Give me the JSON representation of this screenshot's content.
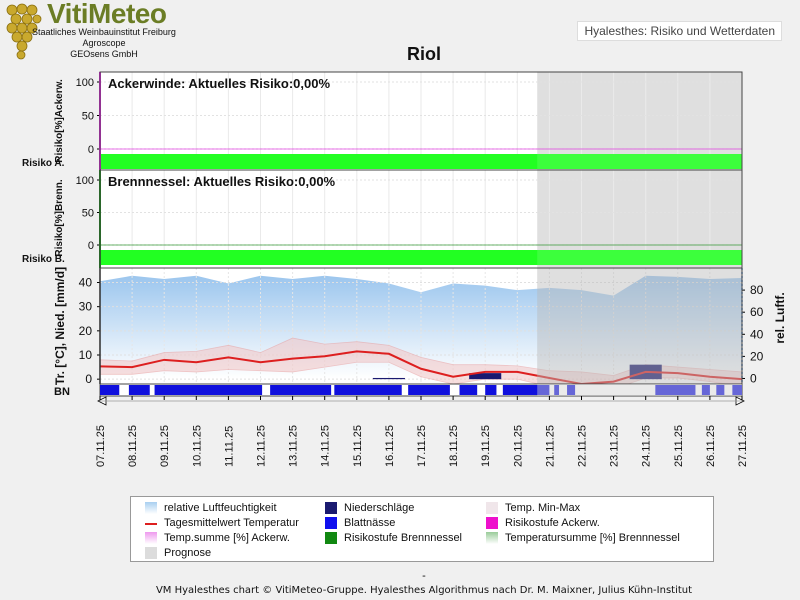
{
  "header": {
    "brand": "VitiMeteo",
    "org_lines": [
      "Staatliches Weinbauinstitut Freiburg",
      "Agroscope",
      "GEOsens GmbH"
    ],
    "badge": "Hyalesthes: Risiko und Wetterdaten"
  },
  "colors": {
    "risk_bar": "#22ff22",
    "prognose": "#dcdcdc",
    "humidity": "#a8cff0",
    "temp_line": "#dd1f1f",
    "minmax": "#f2c9c9",
    "leaf_wetness": "#1010dd",
    "precip": "#1a1a70",
    "ackerw_axis": "#e020e0",
    "brennn_axis": "#118811"
  },
  "footer": {
    "dash": "-",
    "credit": "VM Hyalesthes chart © VitiMeteo-Gruppe. Hyalesthes Algorithmus nach Dr. M. Maixner, Julius Kühn-Institut"
  },
  "legend": [
    {
      "label": "relative Luftfeuchtigkeit",
      "color": "#a8cff0",
      "kind": "gradient"
    },
    {
      "label": "Niederschläge",
      "color": "#1a1a70",
      "kind": "box"
    },
    {
      "label": "Temp. Min-Max",
      "color": "#f0e6ea",
      "kind": "box"
    },
    {
      "label": "Tagesmittelwert Temperatur",
      "color": "#dd1f1f",
      "kind": "line"
    },
    {
      "label": "Blattnässe",
      "color": "#1010ee",
      "kind": "box"
    },
    {
      "label": "Risikostufe Ackerw.",
      "color": "#ee10cc",
      "kind": "box"
    },
    {
      "label": "Temp.summe [%] Ackerw.",
      "color": "#ee99ee",
      "kind": "gradient"
    },
    {
      "label": "Risikostufe Brennnessel",
      "color": "#118811",
      "kind": "box"
    },
    {
      "label": "Temperatursumme [%] Brennnessel",
      "color": "#99cc99",
      "kind": "gradient"
    },
    {
      "label": "Prognose",
      "color": "#dcdcdc",
      "kind": "box"
    }
  ],
  "chart_data": {
    "type": "line",
    "title": "Riol",
    "x": [
      "07.11.25",
      "08.11.25",
      "09.11.25",
      "10.11.25",
      "11.11.25",
      "12.11.25",
      "13.11.25",
      "14.11.25",
      "15.11.25",
      "16.11.25",
      "17.11.25",
      "18.11.25",
      "19.11.25",
      "20.11.25",
      "21.11.25",
      "22.11.25",
      "23.11.25",
      "24.11.25",
      "25.11.25",
      "26.11.25",
      "27.11.25"
    ],
    "prognose_start": "21.11.25",
    "panels": [
      {
        "name": "Ackerwinde",
        "annotation": "Ackerwinde: Aktuelles Risiko:0,00%",
        "ylabel": "Risiko[%]Ackerw.",
        "risk_label": "Risiko A.",
        "yticks": [
          0,
          50,
          100
        ],
        "ylim": [
          -5,
          105
        ],
        "temp_sum_percent": [
          0,
          0,
          0,
          0,
          0,
          0,
          0,
          0,
          0,
          0,
          0,
          0,
          0,
          0,
          0,
          0,
          0,
          0,
          0,
          0,
          0
        ],
        "risk_level": "0"
      },
      {
        "name": "Brennnessel",
        "annotation": "Brennnessel: Aktuelles Risiko:0,00%",
        "ylabel": "Risiko[%]Brenn.",
        "risk_label": "Risiko B.",
        "yticks": [
          0,
          50,
          100
        ],
        "ylim": [
          -5,
          105
        ],
        "temp_sum_percent": [
          0,
          0,
          0,
          0,
          0,
          0,
          0,
          0,
          0,
          0,
          0,
          0,
          0,
          0,
          0,
          0,
          0,
          0,
          0,
          0,
          0
        ],
        "risk_level": "0"
      },
      {
        "name": "Wetter",
        "ylabel_left": "Tr. [°C], Nied. [mm/d]",
        "ylabel_right": "rel. Luftf.",
        "yticks_left": [
          0,
          10,
          20,
          30,
          40
        ],
        "ylim_left": [
          -2,
          46
        ],
        "yticks_right": [
          0,
          20,
          40,
          60,
          80
        ],
        "ylim_right": [
          -5,
          100
        ],
        "bn_label": "BN",
        "humidity_percent": [
          88,
          93,
          90,
          93,
          86,
          93,
          90,
          93,
          90,
          86,
          78,
          86,
          84,
          80,
          82,
          80,
          75,
          93,
          92,
          90,
          91
        ],
        "temp_mean": [
          5.3,
          5.0,
          8.0,
          7.0,
          9.0,
          7.0,
          8.5,
          9.5,
          11.5,
          10.5,
          4.3,
          1.0,
          3.0,
          3.0,
          0.5,
          -2.0,
          -1.0,
          3.0,
          2.5,
          1.0,
          0.0
        ],
        "temp_max": [
          8.0,
          7.5,
          11.0,
          11.5,
          14.0,
          11.0,
          17.0,
          14.5,
          15.5,
          14.0,
          9.0,
          6.0,
          6.0,
          5.5,
          3.5,
          3.0,
          1.5,
          6.0,
          5.0,
          4.0,
          3.0
        ],
        "temp_min": [
          2.0,
          2.0,
          3.5,
          3.0,
          4.0,
          3.5,
          3.0,
          5.0,
          7.0,
          7.0,
          1.0,
          -2.0,
          0.0,
          0.0,
          -3.0,
          -5.0,
          -4.0,
          0.5,
          0.5,
          -1.0,
          -3.0
        ],
        "precip_mm": [
          0,
          0,
          0,
          0,
          0,
          0,
          0,
          0,
          0,
          0.5,
          0,
          0,
          2.5,
          0,
          0,
          0,
          0,
          6.0,
          0,
          0,
          0
        ],
        "leaf_wetness_segments": [
          [
            0.0,
            0.6
          ],
          [
            0.9,
            1.55
          ],
          [
            1.7,
            5.05
          ],
          [
            5.3,
            7.2
          ],
          [
            7.3,
            9.4
          ],
          [
            9.6,
            10.9
          ],
          [
            11.2,
            11.75
          ],
          [
            12.0,
            12.35
          ],
          [
            12.55,
            14.0
          ],
          [
            14.15,
            14.3
          ],
          [
            14.55,
            14.8
          ],
          [
            17.3,
            18.55
          ],
          [
            18.75,
            19.0
          ],
          [
            19.2,
            19.45
          ],
          [
            19.7,
            20.0
          ]
        ]
      }
    ]
  }
}
